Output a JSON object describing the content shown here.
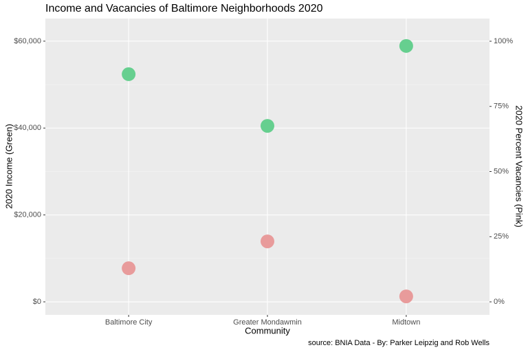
{
  "chart_data": {
    "type": "scatter",
    "title": "Income and Vacancies of Baltimore Neighborhoods 2020",
    "x_label": "Community",
    "y_label": "2020 Income (Green)",
    "y2_label": "2020 Percent Vacancies (Pink)",
    "caption": "source: BNIA Data - By: Parker Leipzig and Rob Wells",
    "categories": [
      "Baltimore City",
      "Greater Mondawmin",
      "Midtown"
    ],
    "series": [
      {
        "color": "#66cf8f",
        "values": [
          52400,
          40500,
          58900
        ]
      },
      {
        "color": "#e89b9b",
        "axis": "y2",
        "values": [
          12.9,
          23.2,
          2.1
        ]
      }
    ],
    "ylim": [
      -3000,
      65200
    ],
    "yticks": [
      {
        "value": 0,
        "label": "$0"
      },
      {
        "value": 20000,
        "label": "$20,000"
      },
      {
        "value": 40000,
        "label": "$40,000"
      },
      {
        "value": 60000,
        "label": "$60,000"
      }
    ],
    "y2lim": [
      -5,
      108.7
    ],
    "y2ticks": [
      {
        "value": 0,
        "label": "0%"
      },
      {
        "value": 25,
        "label": "25%"
      },
      {
        "value": 50,
        "label": "50%"
      },
      {
        "value": 75,
        "label": "75%"
      },
      {
        "value": 100,
        "label": "100%"
      }
    ],
    "grid": true
  }
}
